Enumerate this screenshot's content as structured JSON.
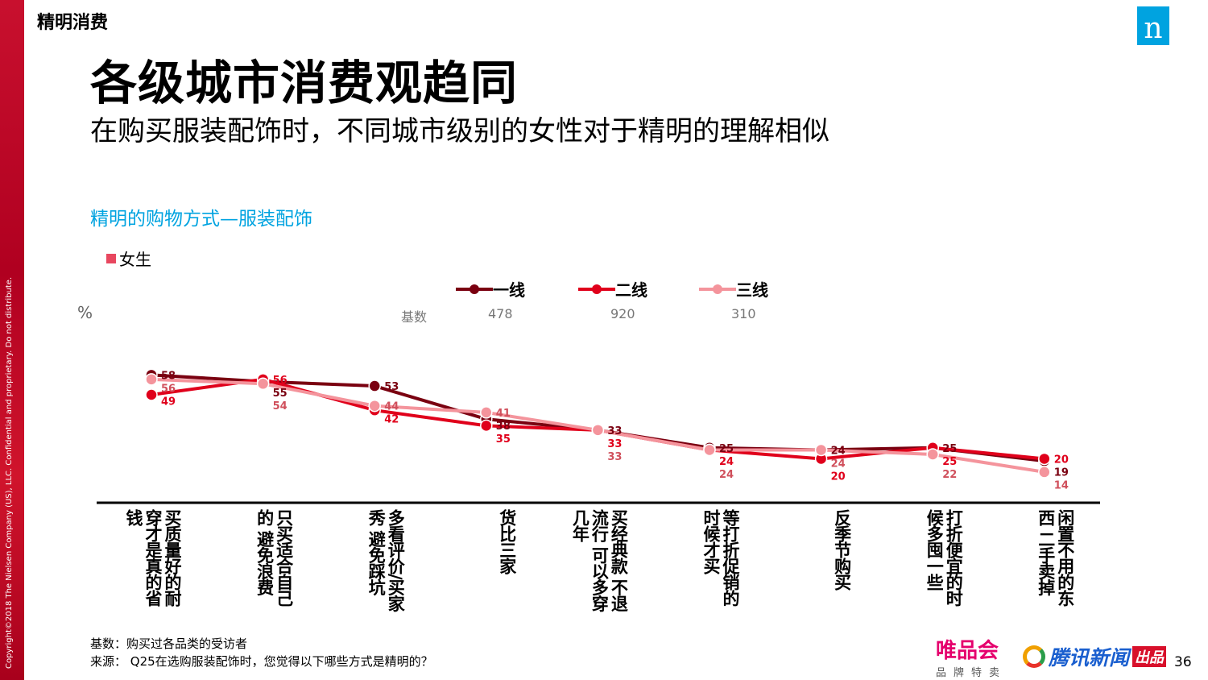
{
  "section": "精明消费",
  "logo": "n",
  "copyright": "Copyright©2018 The Nielsen Company (US), LLC. Confidential and proprietary. Do not distribute.",
  "title": "各级城市消费观趋同",
  "subtitle": "在购买服装配饰时，不同城市级别的女性对于精明的理解相似",
  "chart_title": "精明的购物方式—服装配饰",
  "female_label": "女生",
  "unit": "%",
  "base_label": "基数",
  "colors": {
    "tier1": "#7a0010",
    "tier2": "#e0001b",
    "tier3": "#f4949c",
    "female": "#e8475f",
    "accent": "#00a3e0"
  },
  "chart_data": {
    "type": "line",
    "categories": [
      "买质量好的耐穿才是真的省钱",
      "只买适合自己的 避免浪费",
      "多看评价/买家秀 避免踩坑",
      "货比三家",
      "买经典款 不退流行 可以多穿几年",
      "等打折促销的时候才买",
      "反季节购买",
      "打折便宜的时候多囤一些",
      "闲置不用的东西 二手卖掉"
    ],
    "series": [
      {
        "name": "一线",
        "base": "478",
        "values": [
          58,
          55,
          53,
          38,
          33,
          25,
          24,
          25,
          19
        ]
      },
      {
        "name": "二线",
        "base": "920",
        "values": [
          49,
          56,
          42,
          35,
          33,
          24,
          20,
          25,
          20
        ]
      },
      {
        "name": "三线",
        "base": "310",
        "values": [
          56,
          54,
          44,
          41,
          33,
          24,
          24,
          22,
          14
        ]
      }
    ],
    "ylabel": "%",
    "legend": "top",
    "grid": false
  },
  "footer": {
    "base": "基数：购买过各品类的受访者",
    "source": "来源：   Q25在选购服装配饰时，您觉得以下哪些方式是精明的？"
  },
  "brand1": "唯品会",
  "brand1_sub": "品牌特卖",
  "brand2": "腾讯新闻",
  "brand2_tag": "出品",
  "page": "36"
}
